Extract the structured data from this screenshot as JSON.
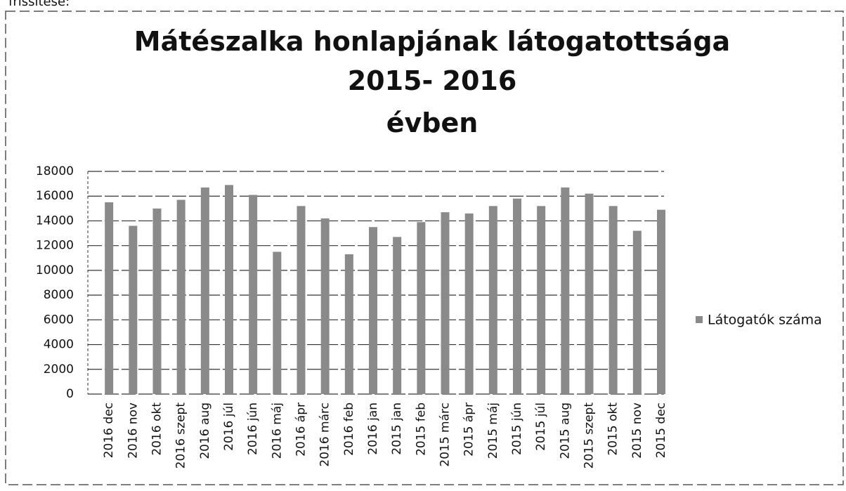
{
  "caption": "frissítése:",
  "chart_data": {
    "type": "bar",
    "title": [
      "Mátészalka honlapjának látogatottsága",
      "2015- 2016",
      "évben"
    ],
    "categories": [
      "2016 dec",
      "2016 nov",
      "2016 okt",
      "2016 szept",
      "2016 aug",
      "2016 júl",
      "2016 jún",
      "2016 máj",
      "2016 ápr",
      "2016 márc",
      "2016 feb",
      "2016 jan",
      "2015 jan",
      "2015 feb",
      "2015 márc",
      "2015 ápr",
      "2015 máj",
      "2015 jún",
      "2015 júl",
      "2015 aug",
      "2015 szept",
      "2015 okt",
      "2015 nov",
      "2015 dec"
    ],
    "series": [
      {
        "name": "Látogatók száma",
        "color": "#8a8a8a",
        "values": [
          15500,
          13600,
          15000,
          15700,
          16700,
          16900,
          16100,
          11500,
          15200,
          14200,
          11300,
          13500,
          12700,
          13900,
          14700,
          14600,
          15200,
          15800,
          15200,
          16700,
          16200,
          15200,
          13200,
          14900
        ]
      }
    ],
    "ylim": [
      0,
      18000
    ],
    "yticks": [
      0,
      2000,
      4000,
      6000,
      8000,
      10000,
      12000,
      14000,
      16000,
      18000
    ],
    "grid": true
  }
}
